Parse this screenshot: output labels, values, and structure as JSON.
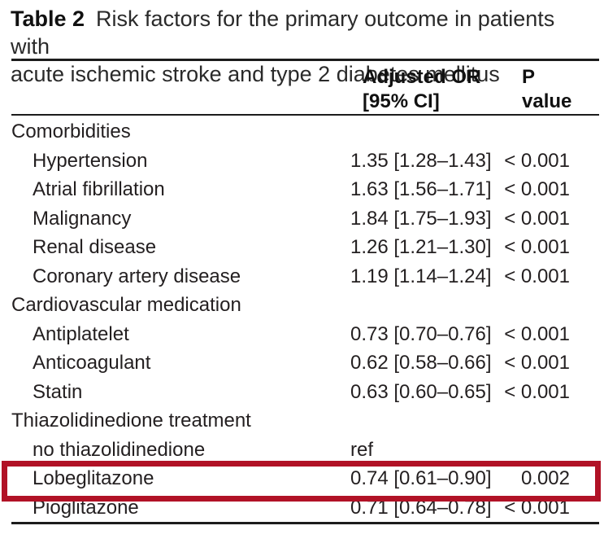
{
  "table": {
    "label": "Table 2",
    "caption_line1": "Risk factors for the primary outcome in patients with",
    "caption_line2": "acute ischemic stroke and type 2 diabetes mellitus",
    "columns": {
      "or_header": "Adjusted OR\n[95% CI]",
      "p_header": "P\nvalue"
    },
    "sections": [
      {
        "header": "Comorbidities",
        "rows": [
          {
            "label": "Hypertension",
            "or": "1.35 [1.28–1.43]",
            "p": "< 0.001"
          },
          {
            "label": "Atrial fibrillation",
            "or": "1.63 [1.56–1.71]",
            "p": "< 0.001"
          },
          {
            "label": "Malignancy",
            "or": "1.84 [1.75–1.93]",
            "p": "< 0.001"
          },
          {
            "label": "Renal disease",
            "or": "1.26 [1.21–1.30]",
            "p": "< 0.001"
          },
          {
            "label": "Coronary artery disease",
            "or": "1.19 [1.14–1.24]",
            "p": "< 0.001"
          }
        ]
      },
      {
        "header": "Cardiovascular medication",
        "rows": [
          {
            "label": "Antiplatelet",
            "or": "0.73 [0.70–0.76]",
            "p": "< 0.001"
          },
          {
            "label": "Anticoagulant",
            "or": "0.62 [0.58–0.66]",
            "p": "< 0.001"
          },
          {
            "label": "Statin",
            "or": "0.63 [0.60–0.65]",
            "p": "< 0.001"
          }
        ]
      },
      {
        "header": "Thiazolidinedione treatment",
        "rows": [
          {
            "label": "no thiazolidinedione",
            "or": "ref",
            "p": ""
          },
          {
            "label": "Lobeglitazone",
            "or": "0.74 [0.61–0.90]",
            "p": "0.002"
          },
          {
            "label": "Pioglitazone",
            "or": "0.71 [0.64–0.78]",
            "p": "< 0.001"
          }
        ]
      }
    ],
    "highlight": {
      "row_label": "Lobeglitazone",
      "color": "#b11226"
    }
  }
}
